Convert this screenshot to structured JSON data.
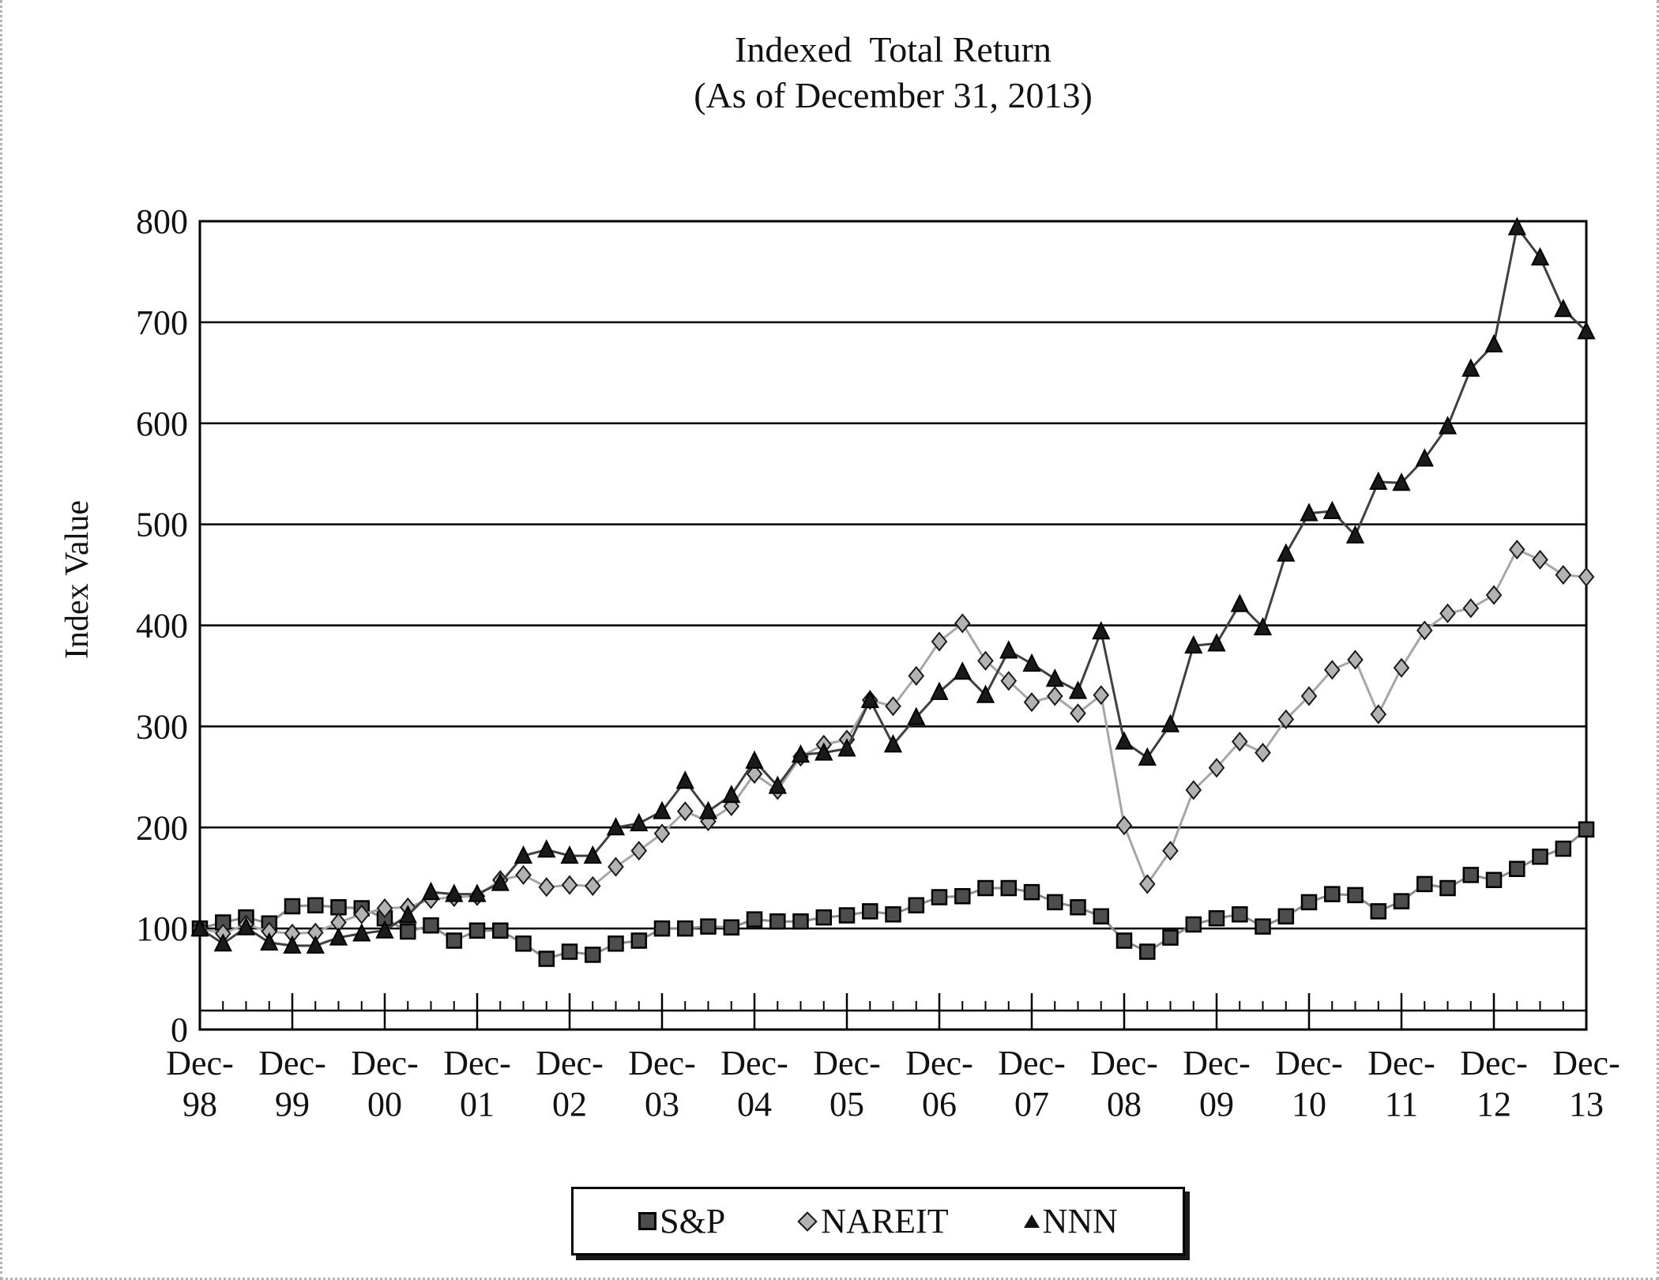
{
  "title": {
    "line1": "Indexed  Total Return",
    "line2": "(As of December 31, 2013)"
  },
  "y_axis_title": "Index Value",
  "legend": {
    "items": [
      {
        "label": "S&P",
        "marker": "square-icon"
      },
      {
        "label": "NAREIT",
        "marker": "diamond-icon"
      },
      {
        "label": "NNN",
        "marker": "triangle-icon"
      }
    ]
  },
  "colors": {
    "sp_line": "#8c8c8c",
    "sp_fill": "#4d4d4d",
    "sp_stroke": "#000000",
    "nareit_line": "#a6a6a6",
    "nareit_fill": "#b3b3b3",
    "nareit_stroke": "#1a1a1a",
    "nnn_line": "#404040",
    "nnn_fill": "#1a1a1a",
    "nnn_stroke": "#000000",
    "grid": "#000000"
  },
  "chart_data": {
    "type": "line",
    "title": "Indexed  Total Return (As of December 31, 2013)",
    "xlabel": "",
    "ylabel": "Index Value",
    "ylim": [
      0,
      800
    ],
    "y_ticks": [
      0,
      100,
      200,
      300,
      400,
      500,
      600,
      700,
      800
    ],
    "grid": "horizontal",
    "legend_position": "bottom",
    "x_tick_prefix": "Dec-",
    "x_tick_years": [
      "98",
      "99",
      "00",
      "01",
      "02",
      "03",
      "04",
      "05",
      "06",
      "07",
      "08",
      "09",
      "10",
      "11",
      "12",
      "13"
    ],
    "x_frequency": "quarterly",
    "categories_note": "61 quarterly points from Dec-1998 to Dec-2013; markers start at Dec-98 on the y-axis",
    "series": [
      {
        "name": "S&P",
        "marker": "square",
        "values": [
          100,
          106,
          111,
          105,
          122,
          123,
          121,
          120,
          110,
          97,
          103,
          88,
          98,
          98,
          85,
          70,
          77,
          74,
          85,
          88,
          100,
          100,
          102,
          101,
          109,
          107,
          107,
          111,
          113,
          117,
          114,
          123,
          131,
          132,
          140,
          140,
          136,
          126,
          121,
          112,
          88,
          77,
          91,
          104,
          110,
          114,
          102,
          112,
          126,
          134,
          133,
          117,
          127,
          144,
          140,
          153,
          148,
          159,
          171,
          179,
          198
        ]
      },
      {
        "name": "NAREIT",
        "marker": "diamond",
        "values": [
          100,
          95,
          104,
          97,
          95,
          96,
          106,
          114,
          120,
          121,
          129,
          131,
          132,
          148,
          153,
          141,
          143,
          142,
          161,
          177,
          194,
          216,
          206,
          221,
          253,
          237,
          270,
          282,
          287,
          326,
          320,
          350,
          384,
          402,
          365,
          345,
          324,
          330,
          313,
          331,
          202,
          144,
          177,
          237,
          259,
          285,
          274,
          307,
          330,
          356,
          366,
          312,
          358,
          395,
          412,
          417,
          430,
          475,
          465,
          450,
          448
        ]
      },
      {
        "name": "NNN",
        "marker": "triangle",
        "values": [
          100,
          85,
          101,
          86,
          83,
          83,
          91,
          95,
          98,
          113,
          136,
          134,
          134,
          145,
          172,
          178,
          172,
          172,
          200,
          204,
          216,
          246,
          216,
          232,
          266,
          241,
          272,
          274,
          278,
          326,
          282,
          309,
          334,
          354,
          331,
          375,
          362,
          347,
          335,
          394,
          285,
          269,
          302,
          380,
          382,
          421,
          398,
          471,
          511,
          513,
          489,
          542,
          541,
          565,
          597,
          654,
          678,
          794,
          764,
          713,
          691
        ]
      }
    ]
  }
}
